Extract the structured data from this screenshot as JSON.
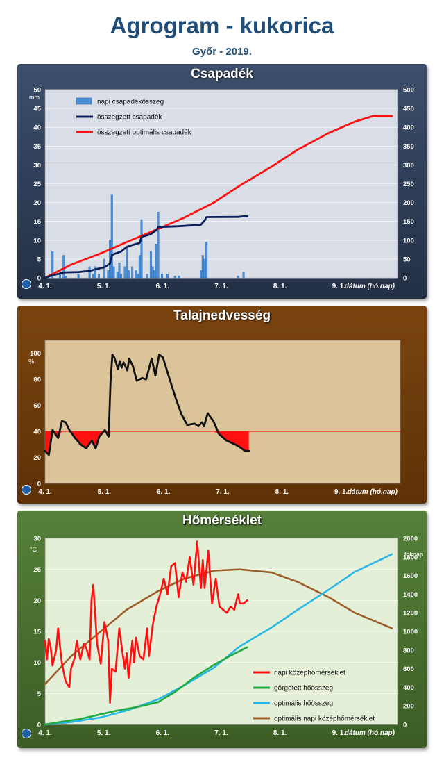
{
  "header": {
    "title": "Agrogram - kukorica",
    "subtitle": "Győr - 2019."
  },
  "colors": {
    "bar_blue": "#4a90d9",
    "navy": "#0b1f5b",
    "red": "#ff1111",
    "green": "#22aa44",
    "lightblue": "#29b6e8",
    "brown": "#9c5f2c",
    "black": "#111111"
  },
  "icons": [
    "weather-service-logo-icon"
  ],
  "chart_data": [
    {
      "type": "bar",
      "title": "Csapadék",
      "ylabel": "mm",
      "y2label": "",
      "xlabel": "dátum (hó.nap)",
      "ylim": [
        0,
        50
      ],
      "y2lim": [
        0,
        500
      ],
      "yticks": [
        0,
        5,
        10,
        15,
        20,
        25,
        30,
        35,
        40,
        45,
        50
      ],
      "y2ticks": [
        0,
        50,
        100,
        150,
        200,
        250,
        300,
        350,
        400,
        450,
        500
      ],
      "xticks": [
        "4. 1.",
        "5. 1.",
        "6. 1.",
        "7. 1.",
        "8. 1.",
        "9. 1."
      ],
      "grid": true,
      "legend_position": "top-left",
      "series": [
        {
          "name": "napi csapadékösszeg",
          "kind": "bar",
          "axis": "left",
          "x": [
            "2019-04-05",
            "2019-04-09",
            "2019-04-11",
            "2019-04-12",
            "2019-04-19",
            "2019-04-25",
            "2019-04-27",
            "2019-04-28",
            "2019-04-30",
            "2019-05-03",
            "2019-05-05",
            "2019-05-06",
            "2019-05-07",
            "2019-05-08",
            "2019-05-10",
            "2019-05-11",
            "2019-05-12",
            "2019-05-14",
            "2019-05-15",
            "2019-05-16",
            "2019-05-18",
            "2019-05-20",
            "2019-05-21",
            "2019-05-22",
            "2019-05-23",
            "2019-05-26",
            "2019-05-28",
            "2019-05-29",
            "2019-05-30",
            "2019-05-31",
            "2019-06-01",
            "2019-06-03",
            "2019-06-06",
            "2019-06-10",
            "2019-06-12",
            "2019-06-24",
            "2019-06-25",
            "2019-06-26",
            "2019-06-27",
            "2019-07-14",
            "2019-07-17"
          ],
          "values": [
            7,
            1,
            6,
            0.5,
            1,
            3,
            1,
            3,
            1,
            5,
            2,
            10,
            22,
            3,
            1.5,
            4,
            1,
            3,
            8,
            2,
            3,
            2,
            1,
            6,
            15.5,
            1,
            7,
            3,
            2,
            9,
            17.5,
            1,
            1,
            0.5,
            0.5,
            2,
            6,
            5,
            9.5,
            0.5,
            1.5
          ]
        },
        {
          "name": "összegzett csapadék",
          "kind": "line",
          "axis": "right",
          "x": [
            "2019-04-01",
            "2019-04-05",
            "2019-04-06",
            "2019-04-11",
            "2019-04-12",
            "2019-04-19",
            "2019-04-25",
            "2019-04-28",
            "2019-05-03",
            "2019-05-06",
            "2019-05-07",
            "2019-05-08",
            "2019-05-12",
            "2019-05-15",
            "2019-05-16",
            "2019-05-18",
            "2019-05-22",
            "2019-05-23",
            "2019-05-28",
            "2019-05-31",
            "2019-06-01",
            "2019-06-12",
            "2019-06-24",
            "2019-06-25",
            "2019-06-26",
            "2019-06-27",
            "2019-07-14",
            "2019-07-17",
            "2019-07-19"
          ],
          "values": [
            0,
            7,
            8,
            14,
            14.5,
            15.5,
            18.5,
            22.5,
            28,
            38,
            60,
            63,
            70,
            82,
            84,
            87,
            93,
            108.5,
            116,
            127,
            135,
            137,
            141,
            147,
            152,
            161.5,
            162,
            163.5,
            163.5
          ]
        },
        {
          "name": "összegzett optimális csapadék",
          "kind": "line",
          "axis": "right",
          "x": [
            "2019-04-01",
            "2019-04-15",
            "2019-05-01",
            "2019-05-15",
            "2019-06-01",
            "2019-06-15",
            "2019-07-01",
            "2019-07-15",
            "2019-08-01",
            "2019-08-15",
            "2019-09-01",
            "2019-09-15",
            "2019-09-25",
            "2019-10-05"
          ],
          "values": [
            0,
            35,
            65,
            95,
            130,
            160,
            200,
            245,
            295,
            340,
            385,
            415,
            430,
            430
          ]
        }
      ]
    },
    {
      "type": "area",
      "title": "Talajnedvesség",
      "ylabel": "%",
      "xlabel": "dátum (hó.nap)",
      "ylim": [
        0,
        110
      ],
      "yticks": [
        0,
        20,
        40,
        60,
        80,
        100
      ],
      "xticks": [
        "4. 1.",
        "5. 1.",
        "6. 1.",
        "7. 1.",
        "8. 1.",
        "9. 1."
      ],
      "threshold": 40,
      "grid": false,
      "series": [
        {
          "name": "",
          "x": [
            "2019-04-01",
            "2019-04-03",
            "2019-04-05",
            "2019-04-08",
            "2019-04-10",
            "2019-04-12",
            "2019-04-14",
            "2019-04-17",
            "2019-04-20",
            "2019-04-23",
            "2019-04-26",
            "2019-04-28",
            "2019-04-30",
            "2019-05-03",
            "2019-05-05",
            "2019-05-06",
            "2019-05-07",
            "2019-05-08",
            "2019-05-10",
            "2019-05-11",
            "2019-05-12",
            "2019-05-13",
            "2019-05-15",
            "2019-05-16",
            "2019-05-18",
            "2019-05-20",
            "2019-05-23",
            "2019-05-25",
            "2019-05-28",
            "2019-05-30",
            "2019-06-01",
            "2019-06-03",
            "2019-06-06",
            "2019-06-10",
            "2019-06-13",
            "2019-06-16",
            "2019-06-20",
            "2019-06-22",
            "2019-06-24",
            "2019-06-25",
            "2019-06-27",
            "2019-06-30",
            "2019-07-03",
            "2019-07-07",
            "2019-07-10",
            "2019-07-13",
            "2019-07-15",
            "2019-07-17",
            "2019-07-19"
          ],
          "values": [
            25,
            22,
            41,
            35,
            48,
            47,
            41,
            35,
            30,
            27,
            33,
            27,
            36,
            41,
            36,
            78,
            99,
            97,
            88,
            94,
            89,
            93,
            87,
            96,
            90,
            79,
            81,
            80,
            96,
            83,
            99,
            97,
            83,
            65,
            53,
            45,
            46,
            44,
            47,
            44,
            54,
            48,
            38,
            33,
            31,
            29,
            27,
            25,
            25
          ]
        }
      ]
    },
    {
      "type": "line",
      "title": "Hőmérséklet",
      "ylabel": "°C",
      "y2label": "foknap",
      "xlabel": "dátum (hó.nap)",
      "ylim": [
        0,
        30
      ],
      "y2lim": [
        0,
        2000
      ],
      "yticks": [
        0,
        5,
        10,
        15,
        20,
        25,
        30
      ],
      "y2ticks": [
        0,
        200,
        400,
        600,
        800,
        1000,
        1200,
        1400,
        1600,
        1800,
        2000
      ],
      "xticks": [
        "4. 1.",
        "5. 1.",
        "6. 1.",
        "7. 1.",
        "8. 1.",
        "9. 1."
      ],
      "grid": true,
      "legend_position": "bottom-right",
      "series": [
        {
          "name": "napi középhőmérséklet",
          "axis": "left",
          "x": [
            "2019-04-01",
            "2019-04-02",
            "2019-04-03",
            "2019-04-04",
            "2019-04-05",
            "2019-04-07",
            "2019-04-08",
            "2019-04-10",
            "2019-04-12",
            "2019-04-14",
            "2019-04-15",
            "2019-04-17",
            "2019-04-18",
            "2019-04-20",
            "2019-04-22",
            "2019-04-23",
            "2019-04-25",
            "2019-04-26",
            "2019-04-27",
            "2019-04-29",
            "2019-05-01",
            "2019-05-03",
            "2019-05-05",
            "2019-05-06",
            "2019-05-07",
            "2019-05-09",
            "2019-05-11",
            "2019-05-13",
            "2019-05-14",
            "2019-05-15",
            "2019-05-16",
            "2019-05-18",
            "2019-05-19",
            "2019-05-20",
            "2019-05-22",
            "2019-05-24",
            "2019-05-26",
            "2019-05-27",
            "2019-05-29",
            "2019-05-31",
            "2019-06-02",
            "2019-06-04",
            "2019-06-06",
            "2019-06-08",
            "2019-06-10",
            "2019-06-12",
            "2019-06-14",
            "2019-06-16",
            "2019-06-18",
            "2019-06-20",
            "2019-06-22",
            "2019-06-24",
            "2019-06-25",
            "2019-06-26",
            "2019-06-28",
            "2019-06-30",
            "2019-07-02",
            "2019-07-04",
            "2019-07-06",
            "2019-07-08",
            "2019-07-10",
            "2019-07-12",
            "2019-07-14",
            "2019-07-15",
            "2019-07-17",
            "2019-07-19"
          ],
          "values": [
            13.5,
            10.5,
            13.8,
            12.5,
            9.5,
            12,
            15.5,
            10,
            7,
            6,
            9,
            10.8,
            13.5,
            10.5,
            13,
            12.5,
            10.5,
            20,
            22.5,
            13,
            9.8,
            16.5,
            13.5,
            3.5,
            9,
            8.5,
            15.5,
            11,
            9,
            11.5,
            7.5,
            13.5,
            10,
            14,
            11,
            10.5,
            15.5,
            11,
            16,
            19,
            21,
            23.5,
            21,
            25.5,
            26,
            20.5,
            24.5,
            23,
            27,
            22.5,
            29.5,
            22,
            26.5,
            22,
            28,
            19.5,
            23.5,
            19,
            18.5,
            18,
            19,
            18.5,
            21,
            19.5,
            19.5,
            20
          ]
        },
        {
          "name": "görgetett hőösszeg",
          "axis": "right",
          "x": [
            "2019-04-01",
            "2019-04-10",
            "2019-04-20",
            "2019-05-01",
            "2019-05-10",
            "2019-05-20",
            "2019-06-01",
            "2019-06-10",
            "2019-06-20",
            "2019-07-01",
            "2019-07-10",
            "2019-07-19"
          ],
          "values": [
            0,
            30,
            60,
            110,
            150,
            185,
            240,
            350,
            500,
            640,
            740,
            830
          ]
        },
        {
          "name": "optimális hőösszeg",
          "axis": "right",
          "x": [
            "2019-04-01",
            "2019-04-15",
            "2019-05-01",
            "2019-05-15",
            "2019-06-01",
            "2019-06-15",
            "2019-07-01",
            "2019-07-15",
            "2019-08-01",
            "2019-08-15",
            "2019-09-01",
            "2019-09-15",
            "2019-10-01",
            "2019-10-05"
          ],
          "values": [
            0,
            25,
            75,
            150,
            270,
            420,
            610,
            840,
            1040,
            1230,
            1450,
            1640,
            1790,
            1830
          ]
        },
        {
          "name": "optimális napi középhőmérséklet",
          "axis": "left",
          "x": [
            "2019-04-01",
            "2019-04-15",
            "2019-05-01",
            "2019-05-15",
            "2019-06-01",
            "2019-06-15",
            "2019-07-01",
            "2019-07-15",
            "2019-08-01",
            "2019-08-15",
            "2019-09-01",
            "2019-09-15",
            "2019-10-05"
          ],
          "values": [
            6.5,
            11,
            15,
            18.5,
            21.5,
            23.5,
            24.8,
            25,
            24.5,
            23,
            20.5,
            18,
            15.5
          ]
        }
      ]
    }
  ]
}
